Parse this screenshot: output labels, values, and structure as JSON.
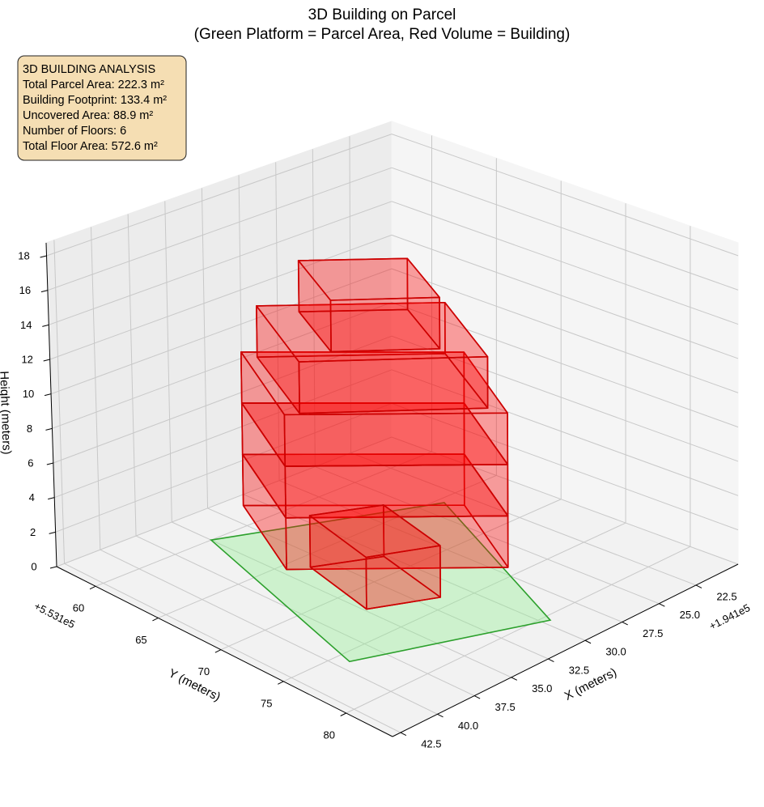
{
  "chart_data": {
    "type": "3d",
    "title": "3D Building on Parcel",
    "subtitle": "(Green Platform = Parcel Area, Red Volume = Building)",
    "xlabel": "X (meters)",
    "ylabel": "Y (meters)",
    "zlabel": "Height (meters)",
    "x_offset_label": "+1.941e5",
    "y_offset_label": "+5.531e5",
    "xlim": [
      19.65,
      43.04
    ],
    "ylim": [
      56.9,
      83.7
    ],
    "zlim": [
      0,
      18.75
    ],
    "xticks": [
      22.5,
      {
        "value": 25,
        "label": "25.0"
      },
      27.5,
      {
        "value": 30,
        "label": "30.0"
      },
      32.5,
      {
        "value": 35,
        "label": "35.0"
      },
      37.5,
      {
        "value": 40,
        "label": "40.0"
      },
      42.5
    ],
    "yticks": [
      60,
      65,
      70,
      75,
      80
    ],
    "zticks": [
      0,
      2,
      4,
      6,
      8,
      10,
      12,
      14,
      16,
      18
    ],
    "grid": true,
    "parcel": {
      "color": "#90ee90",
      "edgecolor": "#2ca02c",
      "x": [
        35.0,
        23.7,
        29.6,
        39.3
      ],
      "y": [
        60.0,
        65.5,
        80.5,
        75.9
      ]
    },
    "building": {
      "color": "#ff0000",
      "edgecolor": "#cc0000",
      "floors": [
        {
          "x": [
            30.95,
            34.6,
            26.9,
            23.25
          ],
          "y": [
            57.96,
            65.5,
            74.1,
            66.56
          ],
          "z": [
            0,
            3
          ]
        },
        {
          "x": [
            30.95,
            34.6,
            26.9,
            23.25
          ],
          "y": [
            57.96,
            65.5,
            74.1,
            66.56
          ],
          "z": [
            3,
            6
          ]
        },
        {
          "x": [
            30.95,
            34.6,
            26.9,
            23.25
          ],
          "y": [
            57.96,
            65.5,
            74.1,
            66.56
          ],
          "z": [
            6,
            9
          ]
        },
        {
          "x": [
            30.8,
            33.95,
            27.14,
            23.99
          ],
          "y": [
            59.05,
            65.95,
            72.84,
            65.94
          ],
          "z": [
            9,
            12
          ]
        },
        {
          "x": [
            29.78,
            32.0,
            28.06,
            25.84
          ],
          "y": [
            61.2,
            66.23,
            70.18,
            65.15
          ],
          "z": [
            12,
            15
          ]
        },
        {
          "x": [
            33.57,
            34.85,
            31.44,
            30.16
          ],
          "y": [
            66.2,
            72.1,
            74.0,
            68.1
          ],
          "z": [
            0,
            3
          ]
        }
      ]
    },
    "info_box": {
      "lines": [
        "3D BUILDING ANALYSIS",
        "Total Parcel Area: 222.3 m²",
        "Building Footprint: 133.4 m²",
        "Uncovered Area: 88.9 m²",
        "Number of Floors: 6",
        "Total Floor Area: 572.6 m²"
      ]
    }
  }
}
